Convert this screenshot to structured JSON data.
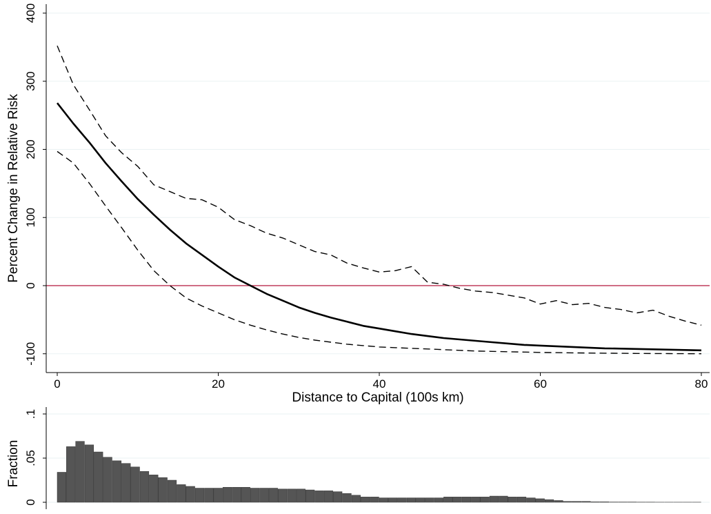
{
  "chart_data": [
    {
      "type": "line",
      "title": "",
      "xlabel": "Distance to Capital (100s km)",
      "ylabel": "Percent Change in Relative Risk",
      "xlim": [
        -2,
        81
      ],
      "ylim": [
        -105,
        402
      ],
      "xticks": [
        0,
        20,
        40,
        60,
        80
      ],
      "yticks": [
        -100,
        0,
        100,
        200,
        300,
        400
      ],
      "ytick_labels": [
        "-100",
        "0",
        "100",
        "200",
        "300",
        "400"
      ],
      "grid": true,
      "reference_line": {
        "y": 0,
        "color": "#b3163a"
      },
      "series": [
        {
          "style": "solid",
          "x": [
            0,
            2,
            4,
            6,
            8,
            10,
            12,
            14,
            16,
            18,
            20,
            22,
            24,
            26,
            28,
            30,
            32,
            34,
            36,
            38,
            40,
            42,
            44,
            46,
            48,
            50,
            52,
            54,
            56,
            58,
            60,
            62,
            64,
            66,
            68,
            70,
            72,
            74,
            76,
            78,
            80
          ],
          "y": [
            268,
            238,
            210,
            180,
            153,
            127,
            104,
            82,
            62,
            45,
            28,
            12,
            0,
            -12,
            -22,
            -32,
            -40,
            -47,
            -53,
            -59,
            -63,
            -67,
            -71,
            -74,
            -77,
            -79,
            -81,
            -83,
            -85,
            -87,
            -88,
            -89,
            -90,
            -91,
            -92,
            -92.5,
            -93,
            -93.5,
            -94,
            -94.5,
            -95
          ]
        },
        {
          "style": "dashed",
          "x": [
            0,
            2,
            4,
            6,
            8,
            10,
            12,
            14,
            16,
            18,
            20,
            22,
            24,
            26,
            28,
            30,
            32,
            34,
            36,
            38,
            40,
            42,
            44,
            46,
            48,
            50,
            52,
            54,
            56,
            58,
            60,
            62,
            64,
            66,
            68,
            70,
            72,
            74,
            76,
            78,
            80
          ],
          "y": [
            352,
            295,
            258,
            220,
            195,
            175,
            148,
            138,
            128,
            126,
            115,
            97,
            88,
            77,
            70,
            60,
            50,
            45,
            33,
            26,
            20,
            22,
            28,
            5,
            2,
            -4,
            -8,
            -10,
            -14,
            -18,
            -27,
            -22,
            -28,
            -26,
            -32,
            -35,
            -40,
            -36,
            -45,
            -52,
            -58
          ]
        },
        {
          "style": "dashed",
          "x": [
            0,
            2,
            4,
            6,
            8,
            10,
            12,
            14,
            16,
            18,
            20,
            22,
            24,
            26,
            28,
            30,
            32,
            34,
            36,
            38,
            40,
            42,
            44,
            46,
            48,
            50,
            52,
            54,
            56,
            58,
            60,
            62,
            64,
            66,
            68,
            70,
            72,
            74,
            76,
            78,
            80
          ],
          "y": [
            197,
            180,
            150,
            117,
            85,
            52,
            22,
            0,
            -18,
            -30,
            -40,
            -50,
            -58,
            -65,
            -71,
            -76,
            -80,
            -83,
            -86,
            -88,
            -90,
            -91,
            -92,
            -93,
            -94,
            -95,
            -96,
            -96.5,
            -97,
            -97.5,
            -98,
            -98.3,
            -98.6,
            -98.9,
            -99.1,
            -99.3,
            -99.5,
            -99.6,
            -99.7,
            -99.8,
            -99.9
          ]
        }
      ]
    },
    {
      "type": "bar",
      "title": "",
      "xlabel": "",
      "ylabel": "Fraction",
      "ylim": [
        0,
        0.1
      ],
      "yticks": [
        0,
        0.05,
        0.1
      ],
      "ytick_labels": [
        "0",
        ".05",
        ".1"
      ],
      "grid": true,
      "bar_color": "#555555",
      "bin_start": 0,
      "bin_width": 1,
      "values": [
        0.034,
        0.063,
        0.069,
        0.065,
        0.057,
        0.051,
        0.047,
        0.044,
        0.04,
        0.035,
        0.031,
        0.028,
        0.025,
        0.02,
        0.018,
        0.016,
        0.016,
        0.016,
        0.017,
        0.017,
        0.017,
        0.016,
        0.016,
        0.016,
        0.015,
        0.015,
        0.015,
        0.014,
        0.013,
        0.013,
        0.012,
        0.01,
        0.008,
        0.006,
        0.006,
        0.005,
        0.005,
        0.005,
        0.005,
        0.005,
        0.005,
        0.005,
        0.006,
        0.006,
        0.006,
        0.006,
        0.006,
        0.007,
        0.007,
        0.006,
        0.006,
        0.005,
        0.004,
        0.003,
        0.002,
        0.001,
        0.001,
        0.001,
        0.0005,
        0.0005,
        0.0003,
        0.0003,
        0.0003,
        0.0002,
        0.0002,
        0.0001,
        0.0001,
        0.0001,
        0.0001,
        0.0001
      ]
    }
  ]
}
